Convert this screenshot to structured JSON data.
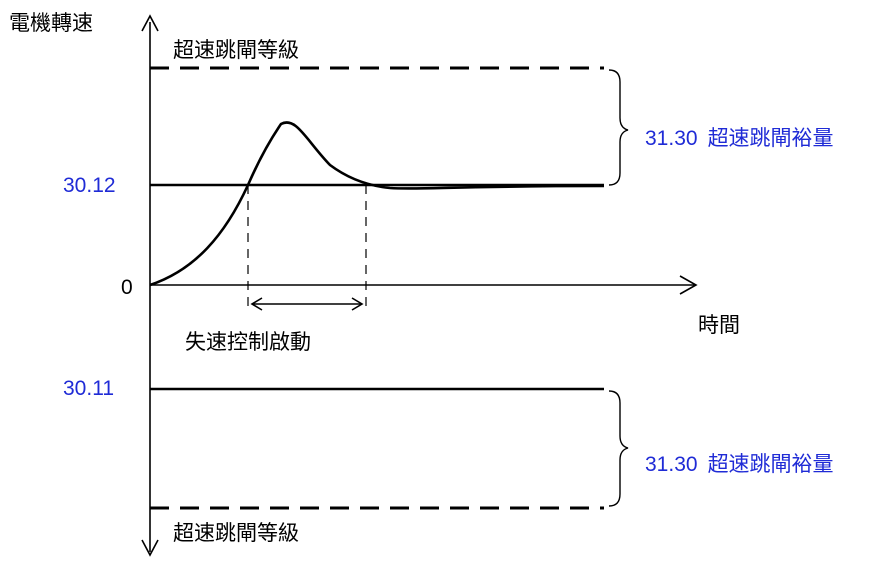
{
  "labels": {
    "y_axis": "電機轉速",
    "x_axis": "時間",
    "origin": "0",
    "trip_level_top": "超速跳閘等級",
    "trip_level_bottom": "超速跳閘等級",
    "upper_value": "30.12",
    "lower_value": "30.11",
    "stall_control": "失速控制啟動",
    "margin_top_code": "31.30",
    "margin_top_text": "超速跳閘裕量",
    "margin_bottom_code": "31.30",
    "margin_bottom_text": "超速跳閘裕量"
  },
  "colors": {
    "line": "#000000",
    "accent_text": "#1f2bd6"
  }
}
